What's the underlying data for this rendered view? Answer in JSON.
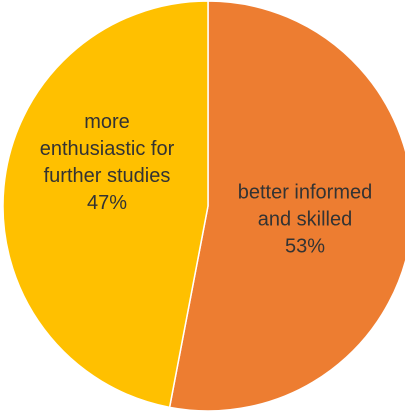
{
  "chart_data": {
    "type": "pie",
    "slices": [
      {
        "name": "better informed and skilled",
        "value": 53,
        "percent_label": "53%",
        "label_lines": [
          "better informed",
          "and skilled"
        ],
        "color": "#ED7D31"
      },
      {
        "name": "more enthusiastic for further studies",
        "value": 47,
        "percent_label": "47%",
        "label_lines": [
          "more",
          "enthusiastic for",
          "further studies"
        ],
        "color": "#FFC000"
      }
    ],
    "start_angle_deg": 0,
    "direction": "clockwise",
    "legend": "none"
  }
}
